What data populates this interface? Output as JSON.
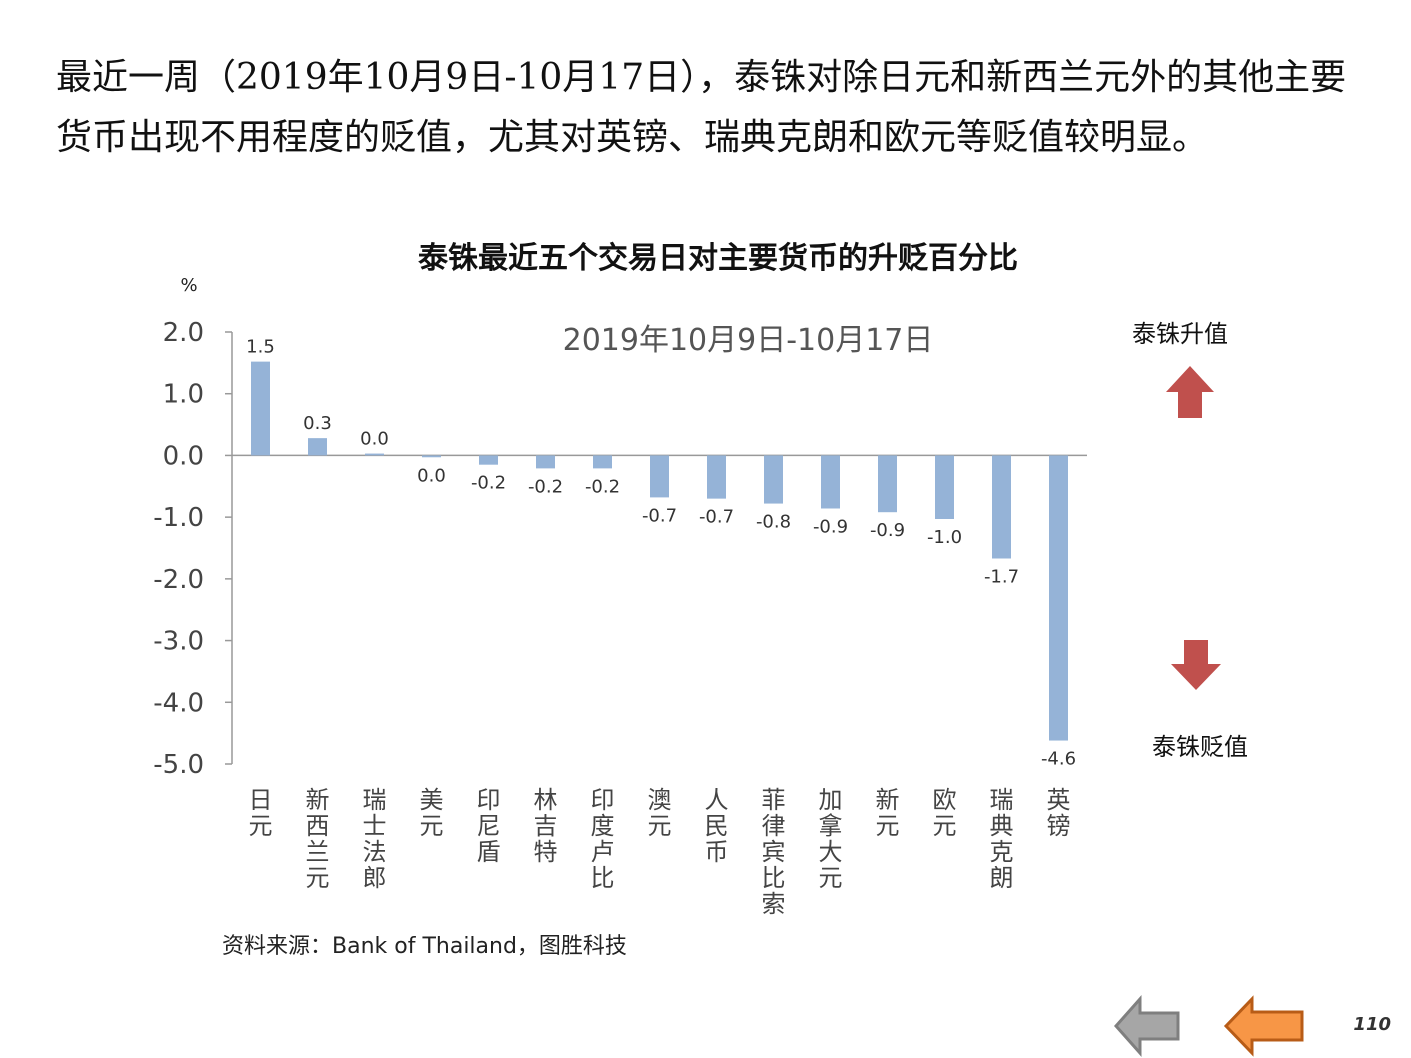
{
  "intro_text": "最近一周（2019年10月9日-10月17日），泰铢对除日元和新西兰元外的其他主要货币出现不用程度的贬值，尤其对英镑、瑞典克朗和欧元等贬值较明显。",
  "chart_data": {
    "type": "bar",
    "title": "泰铢最近五个交易日对主要货币的升贬百分比",
    "subtitle": "2019年10月9日-10月17日",
    "ylabel": "%",
    "ylim": [
      -5.0,
      2.0
    ],
    "yticks": [
      2.0,
      1.0,
      0.0,
      -1.0,
      -2.0,
      -3.0,
      -4.0,
      -5.0
    ],
    "ytick_labels": [
      "2.0",
      "1.0",
      "0.0",
      "-1.0",
      "-2.0",
      "-3.0",
      "-4.0",
      "-5.0"
    ],
    "categories": [
      "日元",
      "新西兰元",
      "瑞士法郎",
      "美元",
      "印尼盾",
      "林吉特",
      "印度卢比",
      "澳元",
      "人民币",
      "菲律宾比索",
      "加拿大元",
      "新元",
      "欧元",
      "瑞典克朗",
      "英镑"
    ],
    "values": [
      1.52,
      0.28,
      0.03,
      -0.03,
      -0.15,
      -0.21,
      -0.21,
      -0.68,
      -0.7,
      -0.78,
      -0.86,
      -0.92,
      -1.03,
      -1.67,
      -4.62
    ],
    "value_labels": [
      "1.5",
      "0.3",
      "0.0",
      "0.0",
      "-0.2",
      "-0.2",
      "-0.2",
      "-0.7",
      "-0.7",
      "-0.8",
      "-0.9",
      "-0.9",
      "-1.0",
      "-1.7",
      "-4.6"
    ],
    "bar_color": "#95B3D7",
    "grid": false,
    "annotations": {
      "up_label": "泰铢升值",
      "down_label": "泰铢贬值",
      "up_arrow_color": "#C0504D",
      "down_arrow_color": "#C0504D"
    }
  },
  "source_text": "资料来源：Bank of Thailand，图胜科技",
  "nav": {
    "back_icon_color": "#A6A6A6",
    "prev_icon_color": "#F79646"
  },
  "page_number": "110"
}
